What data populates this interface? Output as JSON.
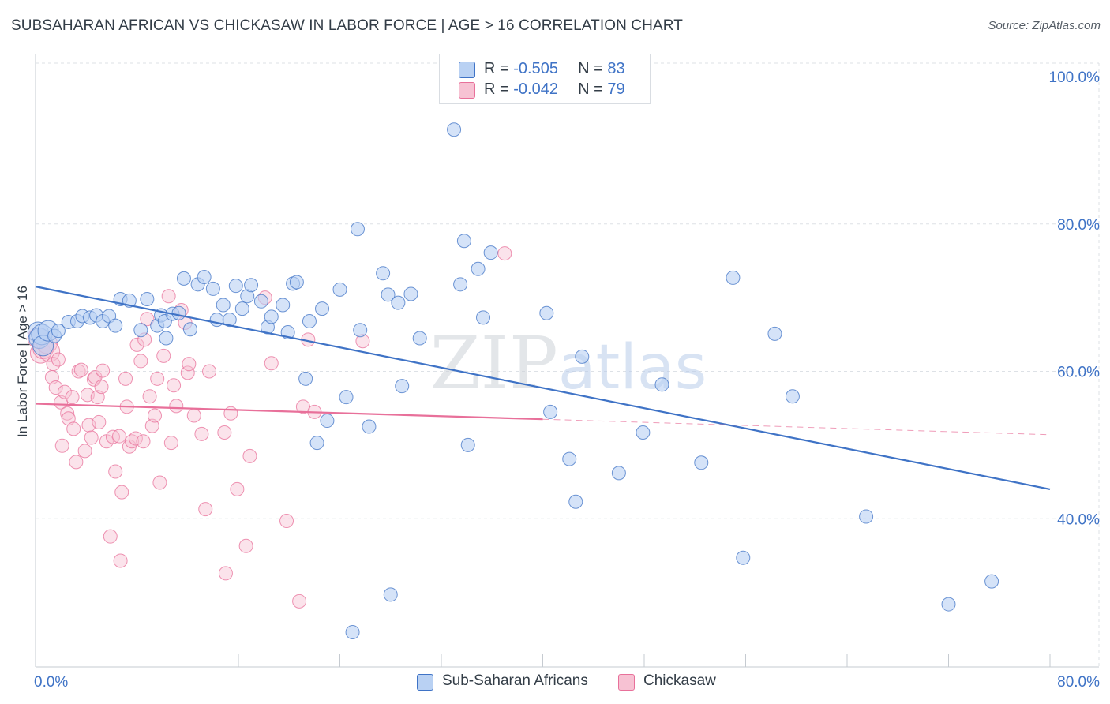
{
  "title": "SUBSAHARAN AFRICAN VS CHICKASAW IN LABOR FORCE | AGE > 16 CORRELATION CHART",
  "source": "Source: ZipAtlas.com",
  "watermark": "ZIPatlas",
  "colors": {
    "blue": "#3f73c6",
    "blue_fill": "#b9d1f3",
    "pink": "#e8709a",
    "pink_fill": "#f7c2d3",
    "grid": "#dde1e6",
    "text": "#333d47"
  },
  "legend": {
    "rows": [
      {
        "r_label": "R = ",
        "r_value": "-0.505",
        "n_label": "N = ",
        "n_value": "83"
      },
      {
        "r_label": "R = ",
        "r_value": "-0.042",
        "n_label": "N = ",
        "n_value": "79"
      }
    ]
  },
  "chart_data": {
    "type": "scatter",
    "title": "SUBSAHARAN AFRICAN VS CHICKASAW IN LABOR FORCE | AGE > 16 CORRELATION CHART",
    "xlabel": "",
    "ylabel": "In Labor Force | Age > 16",
    "xlim": [
      0,
      80
    ],
    "ylim": [
      20,
      100
    ],
    "x_tick_labels": [
      "0.0%",
      "80.0%"
    ],
    "y_tick_labels": [
      "40.0%",
      "60.0%",
      "80.0%",
      "100.0%"
    ],
    "y_ticks": [
      40,
      60,
      80,
      100
    ],
    "grid": true,
    "legend_position": "top-center and bottom",
    "series": [
      {
        "name": "Sub-Saharan Africans",
        "color": "#3f73c6",
        "r": -0.505,
        "n": 83,
        "trend": {
          "x": [
            0,
            80
          ],
          "y": [
            71.5,
            44.0
          ]
        },
        "points": [
          [
            0.2,
            65.3
          ],
          [
            0.3,
            64.5
          ],
          [
            0.5,
            65.0
          ],
          [
            0.6,
            63.5
          ],
          [
            1.0,
            65.5
          ],
          [
            1.5,
            64.8
          ],
          [
            1.8,
            65.5
          ],
          [
            2.6,
            66.7
          ],
          [
            3.3,
            66.8
          ],
          [
            3.7,
            67.5
          ],
          [
            4.3,
            67.3
          ],
          [
            4.8,
            67.6
          ],
          [
            5.3,
            66.8
          ],
          [
            5.8,
            67.5
          ],
          [
            6.3,
            66.2
          ],
          [
            6.7,
            69.8
          ],
          [
            7.4,
            69.6
          ],
          [
            8.3,
            65.6
          ],
          [
            8.8,
            69.8
          ],
          [
            9.6,
            66.2
          ],
          [
            9.9,
            67.6
          ],
          [
            10.2,
            66.8
          ],
          [
            10.3,
            64.5
          ],
          [
            10.8,
            67.8
          ],
          [
            11.3,
            67.9
          ],
          [
            11.7,
            72.6
          ],
          [
            12.2,
            65.7
          ],
          [
            12.8,
            71.8
          ],
          [
            13.3,
            72.8
          ],
          [
            14.0,
            71.2
          ],
          [
            14.3,
            67.0
          ],
          [
            14.8,
            69.0
          ],
          [
            15.3,
            67.0
          ],
          [
            15.8,
            71.6
          ],
          [
            16.3,
            68.5
          ],
          [
            16.7,
            70.2
          ],
          [
            17.0,
            71.7
          ],
          [
            17.8,
            69.5
          ],
          [
            18.3,
            66.0
          ],
          [
            18.6,
            67.4
          ],
          [
            19.5,
            69.0
          ],
          [
            19.9,
            65.3
          ],
          [
            20.3,
            71.9
          ],
          [
            20.6,
            72.1
          ],
          [
            21.3,
            59.0
          ],
          [
            21.6,
            66.8
          ],
          [
            22.2,
            50.3
          ],
          [
            22.6,
            68.5
          ],
          [
            23.0,
            53.3
          ],
          [
            24.0,
            71.1
          ],
          [
            24.5,
            56.5
          ],
          [
            25.0,
            24.6
          ],
          [
            25.4,
            79.3
          ],
          [
            25.6,
            65.6
          ],
          [
            26.3,
            52.5
          ],
          [
            27.4,
            73.3
          ],
          [
            27.8,
            70.4
          ],
          [
            28.0,
            29.7
          ],
          [
            28.6,
            69.3
          ],
          [
            28.9,
            58.0
          ],
          [
            29.6,
            70.5
          ],
          [
            30.3,
            64.5
          ],
          [
            33.0,
            92.8
          ],
          [
            33.5,
            71.8
          ],
          [
            33.8,
            77.7
          ],
          [
            34.1,
            50.0
          ],
          [
            34.9,
            73.9
          ],
          [
            35.3,
            67.3
          ],
          [
            35.9,
            76.1
          ],
          [
            40.3,
            67.9
          ],
          [
            40.6,
            54.5
          ],
          [
            42.1,
            48.1
          ],
          [
            42.6,
            42.3
          ],
          [
            43.1,
            62.0
          ],
          [
            46.0,
            46.2
          ],
          [
            47.9,
            51.7
          ],
          [
            49.4,
            58.2
          ],
          [
            52.5,
            47.6
          ],
          [
            55.0,
            72.7
          ],
          [
            55.8,
            34.7
          ],
          [
            58.3,
            65.1
          ],
          [
            59.7,
            56.6
          ],
          [
            65.5,
            40.3
          ],
          [
            72.0,
            28.4
          ],
          [
            75.4,
            31.5
          ]
        ]
      },
      {
        "name": "Chickasaw",
        "color": "#e8709a",
        "r": -0.042,
        "n": 79,
        "trend": {
          "x": [
            0,
            40
          ],
          "y": [
            55.6,
            53.5
          ]
        },
        "trend_dashed": {
          "x": [
            40,
            80
          ],
          "y": [
            53.5,
            51.4
          ]
        },
        "points": [
          [
            0.2,
            64.5
          ],
          [
            0.4,
            62.5
          ],
          [
            0.6,
            63.1
          ],
          [
            0.9,
            63.8
          ],
          [
            1.1,
            62.7
          ],
          [
            1.3,
            59.2
          ],
          [
            1.4,
            61.0
          ],
          [
            1.6,
            57.8
          ],
          [
            1.8,
            61.6
          ],
          [
            2.0,
            55.8
          ],
          [
            2.1,
            49.9
          ],
          [
            2.3,
            57.2
          ],
          [
            2.5,
            54.3
          ],
          [
            2.6,
            53.6
          ],
          [
            2.9,
            56.5
          ],
          [
            3.0,
            52.2
          ],
          [
            3.2,
            47.7
          ],
          [
            3.4,
            60.0
          ],
          [
            3.6,
            60.2
          ],
          [
            3.9,
            49.2
          ],
          [
            4.1,
            56.8
          ],
          [
            4.2,
            52.7
          ],
          [
            4.4,
            51.0
          ],
          [
            4.6,
            58.9
          ],
          [
            4.7,
            59.2
          ],
          [
            4.9,
            56.5
          ],
          [
            5.0,
            53.1
          ],
          [
            5.2,
            57.9
          ],
          [
            5.3,
            60.1
          ],
          [
            5.6,
            50.5
          ],
          [
            5.9,
            37.6
          ],
          [
            6.1,
            51.1
          ],
          [
            6.3,
            46.4
          ],
          [
            6.6,
            51.2
          ],
          [
            6.7,
            34.3
          ],
          [
            6.8,
            43.6
          ],
          [
            7.1,
            59.0
          ],
          [
            7.2,
            55.2
          ],
          [
            7.4,
            49.8
          ],
          [
            7.6,
            50.5
          ],
          [
            7.9,
            50.9
          ],
          [
            8.0,
            63.6
          ],
          [
            8.3,
            61.4
          ],
          [
            8.5,
            50.5
          ],
          [
            8.6,
            64.3
          ],
          [
            8.8,
            67.1
          ],
          [
            9.0,
            56.6
          ],
          [
            9.2,
            52.6
          ],
          [
            9.4,
            54.0
          ],
          [
            9.6,
            59.0
          ],
          [
            9.8,
            44.9
          ],
          [
            10.1,
            62.1
          ],
          [
            10.5,
            70.2
          ],
          [
            10.7,
            50.3
          ],
          [
            10.9,
            58.1
          ],
          [
            11.1,
            55.3
          ],
          [
            11.5,
            68.3
          ],
          [
            11.8,
            66.6
          ],
          [
            12.0,
            59.8
          ],
          [
            12.1,
            61.0
          ],
          [
            12.5,
            54.0
          ],
          [
            13.1,
            51.5
          ],
          [
            13.4,
            41.3
          ],
          [
            13.7,
            60.0
          ],
          [
            14.9,
            51.7
          ],
          [
            15.0,
            32.6
          ],
          [
            15.4,
            54.3
          ],
          [
            15.9,
            44.0
          ],
          [
            16.6,
            36.3
          ],
          [
            16.9,
            48.5
          ],
          [
            18.1,
            70.0
          ],
          [
            18.6,
            61.1
          ],
          [
            19.8,
            39.7
          ],
          [
            20.8,
            28.8
          ],
          [
            21.1,
            55.2
          ],
          [
            21.5,
            64.3
          ],
          [
            22.0,
            54.5
          ],
          [
            25.8,
            64.1
          ],
          [
            37.0,
            76.0
          ]
        ]
      }
    ]
  }
}
